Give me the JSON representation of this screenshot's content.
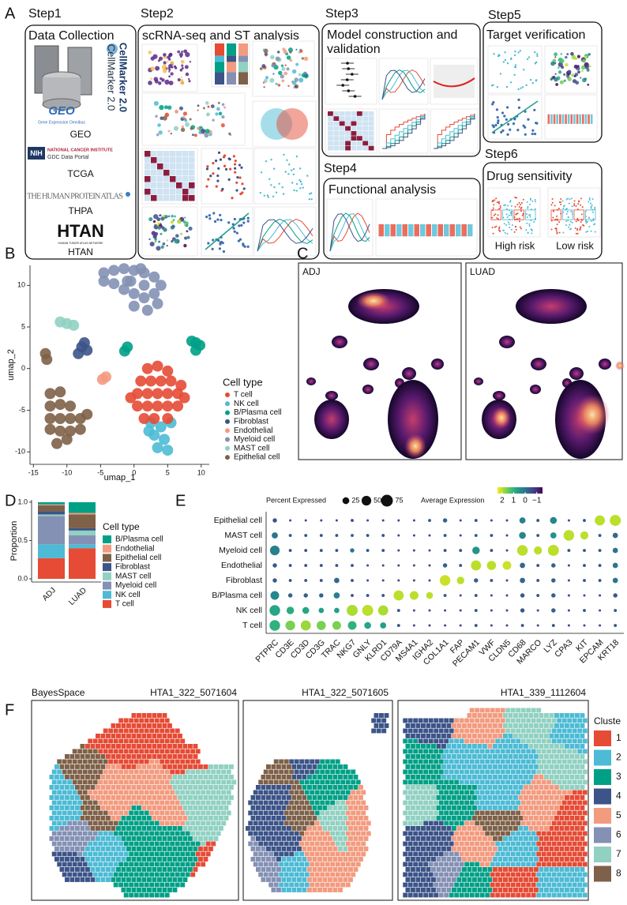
{
  "figure": {
    "panel_a": {
      "label": "A",
      "steps": [
        {
          "step": "Step1",
          "title": [
            "Data Collection"
          ]
        },
        {
          "step": "Step2",
          "title": [
            "scRNA-seq and ST analysis"
          ]
        },
        {
          "step": "Step3",
          "title": [
            "Model construction and",
            "validation"
          ]
        },
        {
          "step": "Step4",
          "title": [
            "Functional analysis"
          ]
        },
        {
          "step": "Step5",
          "title": [
            "Target verification"
          ]
        },
        {
          "step": "Step6",
          "title": [
            "Drug sensitivity"
          ]
        }
      ],
      "sources": [
        {
          "logo": [
            "CellMarker 2.0",
            "CellMarker 2.0"
          ]
        },
        {
          "logo": [
            "GEO",
            "Gene Expression Omnibus"
          ],
          "name": "GEO"
        },
        {
          "logo": [
            "NIH",
            "NATIONAL CANCER INSTITUTE",
            "GDC Data Portal"
          ],
          "name": "TCGA"
        },
        {
          "logo": [
            "THE HUMAN PROTEIN ATLAS"
          ],
          "name": "THPA"
        },
        {
          "logo": [
            "HTAN",
            "HUMAN TUMOR ATLAS NETWORK"
          ],
          "name": "HTAN"
        }
      ],
      "risk_groups": [
        "High risk",
        "Low risk"
      ]
    }
  },
  "chart_data": [
    {
      "type": "scatter",
      "panel": "B",
      "xlabel": "umap_1",
      "ylabel": "umap_2",
      "xlim": [
        -15.5,
        11.2
      ],
      "ylim": [
        -11.5,
        12.4
      ],
      "xticks": [
        -15,
        -10,
        -5,
        0,
        5,
        10
      ],
      "yticks": [
        -10,
        -5,
        0,
        5,
        10
      ],
      "legend_title": "Cell type",
      "series": [
        {
          "name": "T cell",
          "color": "#e64b35",
          "x": [
            2,
            3.5,
            5,
            1,
            2.5,
            4,
            5.5,
            7,
            0.5,
            2,
            3.5,
            5,
            6.5,
            7.5,
            0.5,
            2,
            3.5,
            5,
            6.5,
            1.5,
            3,
            5,
            -0.5
          ],
          "y": [
            0,
            0.3,
            -0.3,
            -1.5,
            -1.5,
            -1.5,
            -1.5,
            -2,
            -3,
            -3,
            -3,
            -3,
            -3,
            -3.5,
            -4.5,
            -4.5,
            -4.5,
            -4.5,
            -4.5,
            -6,
            -6,
            -6,
            -3.5
          ]
        },
        {
          "name": "NK cell",
          "color": "#4dbbd5",
          "x": [
            2.5,
            4,
            5.5,
            3,
            4.5,
            3.5,
            2.2,
            5
          ],
          "y": [
            -6.5,
            -7,
            -6.5,
            -8,
            -8.5,
            -9.5,
            -7.5,
            -9.8
          ]
        },
        {
          "name": "B/Plasma cell",
          "color": "#00a087",
          "x": [
            9.2,
            8.6,
            9.8,
            9.2,
            -1.4,
            -1
          ],
          "y": [
            3.1,
            3.3,
            2.8,
            2.2,
            2.1,
            2.6
          ]
        },
        {
          "name": "Fibroblast",
          "color": "#3c5488",
          "x": [
            -7.8,
            -7,
            -8.3,
            -7.4
          ],
          "y": [
            2.6,
            2.2,
            1.8,
            3.1
          ]
        },
        {
          "name": "Endothelial",
          "color": "#f39b7f",
          "x": [
            -4.7,
            -4.2
          ],
          "y": [
            -1.3,
            -1
          ]
        },
        {
          "name": "Myeloid cell",
          "color": "#8491b4",
          "x": [
            -4.5,
            -3,
            -1.5,
            0,
            1.5,
            3,
            4,
            3,
            1.5,
            0,
            -1.5,
            -3,
            -4.5,
            -1,
            1.5,
            0,
            2,
            3.5,
            -0.5,
            1
          ],
          "y": [
            11.5,
            11.8,
            12,
            11.8,
            11.5,
            11,
            10,
            9,
            8.5,
            9,
            9.5,
            10.2,
            10.5,
            10.5,
            10,
            7.5,
            7,
            7.8,
            10.5,
            12
          ]
        },
        {
          "name": "MAST cell",
          "color": "#91d1c2",
          "x": [
            -11,
            -10,
            -9
          ],
          "y": [
            5.6,
            5.4,
            5.2
          ]
        },
        {
          "name": "Epithelial cell",
          "color": "#7e6148",
          "x": [
            -13.2,
            -13,
            -12.5,
            -11,
            -12.5,
            -11,
            -9.5,
            -12.5,
            -11,
            -9.5,
            -8,
            -11,
            -9.5,
            -8,
            -12.5,
            -10,
            -7,
            -11.5
          ],
          "y": [
            1.8,
            1.1,
            -3,
            -2.8,
            -4.5,
            -4.3,
            -4.5,
            -6,
            -6,
            -6,
            -6,
            -7.5,
            -7.5,
            -7.3,
            -7.3,
            -8.5,
            -5.5,
            -9
          ]
        }
      ]
    },
    {
      "type": "density",
      "panel": "C",
      "facets": [
        "ADJ",
        "LUAD"
      ]
    },
    {
      "type": "stacked-bar",
      "panel": "D",
      "ylabel": "Proportion",
      "categories": [
        "ADJ",
        "LUAD"
      ],
      "ylim": [
        0,
        1.03
      ],
      "yticks": [
        {
          "value": 0,
          "label": "0.0"
        },
        0.5,
        {
          "value": 1,
          "label": "1.0"
        }
      ],
      "legend_title": "Cell type",
      "series": [
        {
          "name": "B/Plasma cell",
          "color": "#00a087",
          "values": [
            0.03,
            0.14
          ]
        },
        {
          "name": "Endothelial",
          "color": "#f39b7f",
          "values": [
            0.01,
            0.02
          ]
        },
        {
          "name": "Epithelial cell",
          "color": "#7e6148",
          "values": [
            0.08,
            0.18
          ]
        },
        {
          "name": "Fibroblast",
          "color": "#3c5488",
          "values": [
            0.04,
            0.03
          ]
        },
        {
          "name": "MAST cell",
          "color": "#91d1c2",
          "values": [
            0.02,
            0.06
          ]
        },
        {
          "name": "Myeloid cell",
          "color": "#8491b4",
          "values": [
            0.37,
            0.12
          ]
        },
        {
          "name": "NK cell",
          "color": "#4dbbd5",
          "values": [
            0.18,
            0.05
          ]
        },
        {
          "name": "T cell",
          "color": "#e64b35",
          "values": [
            0.27,
            0.4
          ]
        }
      ]
    },
    {
      "type": "dot",
      "panel": "E",
      "genes": [
        "PTPRC",
        "CD3E",
        "CD3D",
        "CD3G",
        "TRAC",
        "NKG7",
        "GNLY",
        "KLRD1",
        "CD79A",
        "MS4A1",
        "IGHA2",
        "COL1A1",
        "FAP",
        "PECAM1",
        "VWF",
        "CLDN5",
        "CD68",
        "MARCO",
        "LYZ",
        "CPA3",
        "KIT",
        "EPCAM",
        "KRT18"
      ],
      "cell_types": [
        "Epithelial cell",
        "MAST cell",
        "Myeloid cell",
        "Endothelial",
        "Fibroblast",
        "B/Plasma cell",
        "NK cell",
        "T cell"
      ],
      "size_legend_title": "Percent Expressed",
      "size_legend": [
        25,
        50,
        75
      ],
      "color_legend_title": "Average Expression",
      "clim": [
        2.4,
        -1.5
      ],
      "color_ticks": [
        2,
        1,
        0,
        {
          "value": -1,
          "label": "−1"
        }
      ],
      "pct": [
        [
          10,
          3,
          3,
          3,
          3,
          5,
          3,
          3,
          3,
          3,
          5,
          10,
          3,
          5,
          3,
          3,
          20,
          5,
          25,
          3,
          5,
          55,
          65
        ],
        [
          20,
          5,
          5,
          5,
          5,
          5,
          5,
          5,
          3,
          3,
          3,
          5,
          3,
          5,
          5,
          3,
          25,
          5,
          20,
          60,
          35,
          5,
          15
        ],
        [
          50,
          5,
          5,
          5,
          5,
          10,
          5,
          5,
          3,
          3,
          3,
          5,
          5,
          30,
          5,
          3,
          60,
          35,
          65,
          5,
          5,
          5,
          15
        ],
        [
          10,
          5,
          5,
          5,
          5,
          5,
          3,
          3,
          3,
          3,
          3,
          10,
          5,
          55,
          45,
          40,
          15,
          5,
          10,
          3,
          5,
          5,
          15
        ],
        [
          10,
          5,
          5,
          5,
          15,
          5,
          3,
          3,
          3,
          3,
          3,
          60,
          30,
          10,
          5,
          3,
          15,
          5,
          10,
          3,
          5,
          5,
          15
        ],
        [
          40,
          10,
          10,
          10,
          20,
          5,
          5,
          5,
          55,
          40,
          25,
          5,
          3,
          5,
          3,
          3,
          10,
          5,
          10,
          3,
          3,
          3,
          10
        ],
        [
          60,
          30,
          25,
          15,
          15,
          65,
          65,
          55,
          5,
          3,
          3,
          3,
          3,
          5,
          3,
          3,
          10,
          3,
          10,
          3,
          5,
          3,
          5
        ],
        [
          60,
          50,
          55,
          45,
          40,
          40,
          25,
          20,
          5,
          3,
          3,
          3,
          3,
          5,
          3,
          3,
          5,
          3,
          5,
          3,
          3,
          3,
          5
        ]
      ],
      "expr": [
        [
          -0.5,
          -0.6,
          -0.6,
          -0.6,
          -0.6,
          -0.6,
          -0.6,
          -0.6,
          -0.6,
          -0.6,
          -0.5,
          -0.3,
          -0.6,
          -0.5,
          -0.6,
          -0.6,
          0.2,
          -0.5,
          0.3,
          -0.6,
          -0.5,
          2,
          2
        ],
        [
          0,
          -0.5,
          -0.5,
          -0.5,
          -0.5,
          -0.4,
          -0.5,
          -0.5,
          -0.6,
          -0.6,
          -0.6,
          -0.5,
          -0.6,
          -0.4,
          -0.5,
          -0.6,
          0.3,
          -0.4,
          0.5,
          2,
          2,
          -0.5,
          -0.2
        ],
        [
          0.2,
          -0.5,
          -0.5,
          -0.5,
          -0.5,
          0,
          -0.5,
          -0.5,
          -0.6,
          -0.6,
          -0.6,
          -0.5,
          -0.5,
          0.5,
          -0.5,
          -0.6,
          2,
          2,
          2,
          -0.5,
          -0.5,
          -0.5,
          0
        ],
        [
          -0.4,
          -0.5,
          -0.5,
          -0.5,
          -0.5,
          -0.5,
          -0.6,
          -0.6,
          -0.6,
          -0.6,
          -0.6,
          -0.3,
          -0.5,
          2,
          2,
          2.1,
          -0.2,
          -0.5,
          -0.3,
          -0.6,
          -0.5,
          -0.5,
          0
        ],
        [
          -0.4,
          -0.5,
          -0.5,
          -0.5,
          -0.2,
          -0.5,
          -0.6,
          -0.6,
          -0.6,
          -0.6,
          -0.6,
          2.1,
          2,
          -0.3,
          -0.5,
          -0.6,
          -0.2,
          -0.5,
          -0.3,
          -0.6,
          -0.5,
          -0.5,
          0
        ],
        [
          0.3,
          -0.3,
          -0.3,
          -0.3,
          0.2,
          -0.5,
          -0.5,
          -0.5,
          2,
          2,
          2,
          -0.5,
          -0.6,
          -0.5,
          -0.6,
          -0.6,
          -0.4,
          -0.5,
          -0.3,
          -0.6,
          -0.6,
          -0.6,
          -0.4
        ],
        [
          0.8,
          0.9,
          0.8,
          0.7,
          0.7,
          1.9,
          2,
          1.9,
          -0.5,
          -0.6,
          -0.6,
          -0.6,
          -0.6,
          -0.5,
          -0.6,
          -0.6,
          -0.4,
          -0.6,
          -0.3,
          -0.6,
          -0.5,
          -0.6,
          -0.5
        ],
        [
          1,
          1.6,
          1.8,
          1.6,
          1.6,
          1,
          0.8,
          0.7,
          -0.5,
          -0.6,
          -0.6,
          -0.6,
          -0.6,
          -0.5,
          -0.6,
          -0.6,
          -0.5,
          -0.6,
          -0.5,
          -0.6,
          -0.6,
          -0.6,
          -0.5
        ]
      ]
    },
    {
      "type": "spatial",
      "panel": "F",
      "method": "BayesSpace",
      "samples": [
        "HTA1_322_5071604",
        "HTA1_322_5071605",
        "HTA1_339_1112604"
      ],
      "legend_title": "Cluste",
      "clusters": [
        {
          "name": "1",
          "color": "#e64b35"
        },
        {
          "name": "2",
          "color": "#4dbbd5"
        },
        {
          "name": "3",
          "color": "#00a087"
        },
        {
          "name": "4",
          "color": "#3c5488"
        },
        {
          "name": "5",
          "color": "#f39b7f"
        },
        {
          "name": "6",
          "color": "#8491b4"
        },
        {
          "name": "7",
          "color": "#91d1c2"
        },
        {
          "name": "8",
          "color": "#7e6148"
        }
      ]
    }
  ]
}
